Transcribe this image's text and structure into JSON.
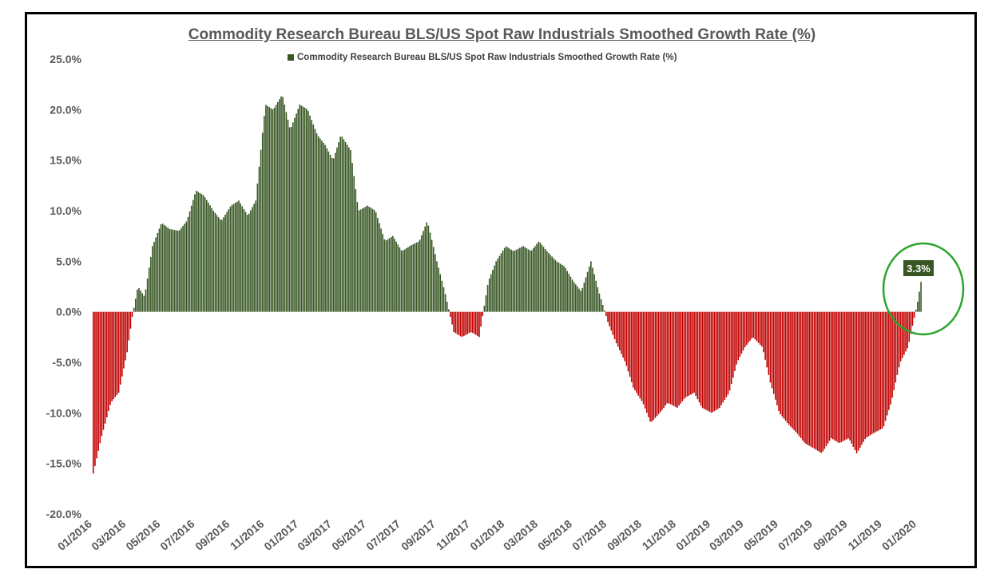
{
  "chart_data": {
    "type": "bar",
    "title": "Commodity Research Bureau BLS/US Spot Raw Industrials Smoothed Growth Rate (%)",
    "legend": {
      "label": "Commodity Research Bureau BLS/US Spot Raw Industrials Smoothed Growth Rate (%)",
      "position": "top-center"
    },
    "series": [
      {
        "name": "Commodity Research Bureau BLS/US Spot Raw Industrials Smoothed Growth Rate (%)"
      }
    ],
    "xlabel": "",
    "ylabel": "",
    "ylim": [
      -20,
      25
    ],
    "yticks": [
      25,
      20,
      15,
      10,
      5,
      0,
      -5,
      -10,
      -15,
      -20
    ],
    "ytick_labels": [
      "25.0%",
      "20.0%",
      "15.0%",
      "10.0%",
      "5.0%",
      "0.0%",
      "-5.0%",
      "-10.0%",
      "-15.0%",
      "-20.0%"
    ],
    "xlim": [
      "2016-01-01",
      "2020-01-08"
    ],
    "xtick_dates": [
      "2016-01-01",
      "2016-03-01",
      "2016-05-01",
      "2016-07-01",
      "2016-09-01",
      "2016-11-01",
      "2017-01-01",
      "2017-03-01",
      "2017-05-01",
      "2017-07-01",
      "2017-09-01",
      "2017-11-01",
      "2018-01-01",
      "2018-03-01",
      "2018-05-01",
      "2018-07-01",
      "2018-09-01",
      "2018-11-01",
      "2019-01-01",
      "2019-03-01",
      "2019-05-01",
      "2019-07-01",
      "2019-09-01",
      "2019-11-01",
      "2020-01-01"
    ],
    "xtick_labels": [
      "01/2016",
      "03/2016",
      "05/2016",
      "07/2016",
      "09/2016",
      "11/2016",
      "01/2017",
      "03/2017",
      "05/2017",
      "07/2017",
      "09/2017",
      "11/2017",
      "01/2018",
      "03/2018",
      "05/2018",
      "07/2018",
      "09/2018",
      "11/2018",
      "01/2019",
      "03/2019",
      "05/2019",
      "07/2019",
      "09/2019",
      "11/2019",
      "01/2020"
    ],
    "data": [
      [
        "2016-01-01",
        -16.0
      ],
      [
        "2016-01-15",
        -12.5
      ],
      [
        "2016-02-01",
        -9.0
      ],
      [
        "2016-02-15",
        -8.0
      ],
      [
        "2016-03-01",
        -4.0
      ],
      [
        "2016-03-10",
        -0.5
      ],
      [
        "2016-03-20",
        2.5
      ],
      [
        "2016-04-01",
        1.5
      ],
      [
        "2016-04-15",
        6.5
      ],
      [
        "2016-05-01",
        8.8
      ],
      [
        "2016-05-15",
        8.2
      ],
      [
        "2016-06-01",
        8.0
      ],
      [
        "2016-06-15",
        9.0
      ],
      [
        "2016-07-01",
        12.0
      ],
      [
        "2016-07-15",
        11.5
      ],
      [
        "2016-08-01",
        10.0
      ],
      [
        "2016-08-15",
        9.0
      ],
      [
        "2016-09-01",
        10.5
      ],
      [
        "2016-09-15",
        11.0
      ],
      [
        "2016-10-01",
        9.5
      ],
      [
        "2016-10-15",
        11.0
      ],
      [
        "2016-11-01",
        20.5
      ],
      [
        "2016-11-15",
        20.0
      ],
      [
        "2016-12-01",
        21.5
      ],
      [
        "2016-12-15",
        18.0
      ],
      [
        "2017-01-01",
        20.5
      ],
      [
        "2017-01-15",
        20.0
      ],
      [
        "2017-02-01",
        17.5
      ],
      [
        "2017-02-15",
        16.5
      ],
      [
        "2017-03-01",
        15.0
      ],
      [
        "2017-03-15",
        17.5
      ],
      [
        "2017-04-01",
        16.0
      ],
      [
        "2017-04-15",
        10.0
      ],
      [
        "2017-05-01",
        10.5
      ],
      [
        "2017-05-15",
        10.0
      ],
      [
        "2017-06-01",
        7.0
      ],
      [
        "2017-06-15",
        7.5
      ],
      [
        "2017-07-01",
        6.0
      ],
      [
        "2017-07-15",
        6.5
      ],
      [
        "2017-08-01",
        7.0
      ],
      [
        "2017-08-15",
        9.0
      ],
      [
        "2017-09-01",
        5.0
      ],
      [
        "2017-09-15",
        2.0
      ],
      [
        "2017-10-01",
        -2.0
      ],
      [
        "2017-10-15",
        -2.5
      ],
      [
        "2017-11-01",
        -2.0
      ],
      [
        "2017-11-15",
        -2.5
      ],
      [
        "2017-12-01",
        3.0
      ],
      [
        "2017-12-15",
        5.0
      ],
      [
        "2018-01-01",
        6.5
      ],
      [
        "2018-01-15",
        6.0
      ],
      [
        "2018-02-01",
        6.5
      ],
      [
        "2018-02-15",
        6.0
      ],
      [
        "2018-03-01",
        7.0
      ],
      [
        "2018-03-15",
        6.0
      ],
      [
        "2018-04-01",
        5.0
      ],
      [
        "2018-04-15",
        4.5
      ],
      [
        "2018-05-01",
        3.0
      ],
      [
        "2018-05-15",
        2.0
      ],
      [
        "2018-06-01",
        5.0
      ],
      [
        "2018-06-15",
        2.0
      ],
      [
        "2018-07-01",
        -1.0
      ],
      [
        "2018-07-15",
        -3.0
      ],
      [
        "2018-08-01",
        -5.0
      ],
      [
        "2018-08-15",
        -7.5
      ],
      [
        "2018-09-01",
        -9.0
      ],
      [
        "2018-09-15",
        -11.0
      ],
      [
        "2018-10-01",
        -10.0
      ],
      [
        "2018-10-15",
        -9.0
      ],
      [
        "2018-11-01",
        -9.5
      ],
      [
        "2018-11-15",
        -8.5
      ],
      [
        "2018-12-01",
        -8.0
      ],
      [
        "2018-12-15",
        -9.5
      ],
      [
        "2019-01-01",
        -10.0
      ],
      [
        "2019-01-15",
        -9.5
      ],
      [
        "2019-02-01",
        -8.0
      ],
      [
        "2019-02-15",
        -5.0
      ],
      [
        "2019-03-01",
        -3.5
      ],
      [
        "2019-03-15",
        -2.5
      ],
      [
        "2019-04-01",
        -3.5
      ],
      [
        "2019-04-15",
        -7.0
      ],
      [
        "2019-05-01",
        -10.0
      ],
      [
        "2019-05-15",
        -11.0
      ],
      [
        "2019-06-01",
        -12.0
      ],
      [
        "2019-06-15",
        -13.0
      ],
      [
        "2019-07-01",
        -13.5
      ],
      [
        "2019-07-15",
        -14.0
      ],
      [
        "2019-08-01",
        -12.5
      ],
      [
        "2019-08-15",
        -13.0
      ],
      [
        "2019-09-01",
        -12.5
      ],
      [
        "2019-09-15",
        -14.0
      ],
      [
        "2019-10-01",
        -12.5
      ],
      [
        "2019-10-15",
        -12.0
      ],
      [
        "2019-11-01",
        -11.5
      ],
      [
        "2019-11-15",
        -9.0
      ],
      [
        "2019-12-01",
        -5.0
      ],
      [
        "2019-12-15",
        -3.5
      ],
      [
        "2020-01-01",
        1.0
      ],
      [
        "2020-01-08",
        3.3
      ]
    ],
    "colors": {
      "positive": "#375623",
      "negative": "#c00000"
    },
    "annotation": {
      "date": "2020-01-08",
      "value": 3.3,
      "label": "3.3%",
      "background": "#375623",
      "highlight_color": "#2aa52a"
    },
    "grid": false
  }
}
